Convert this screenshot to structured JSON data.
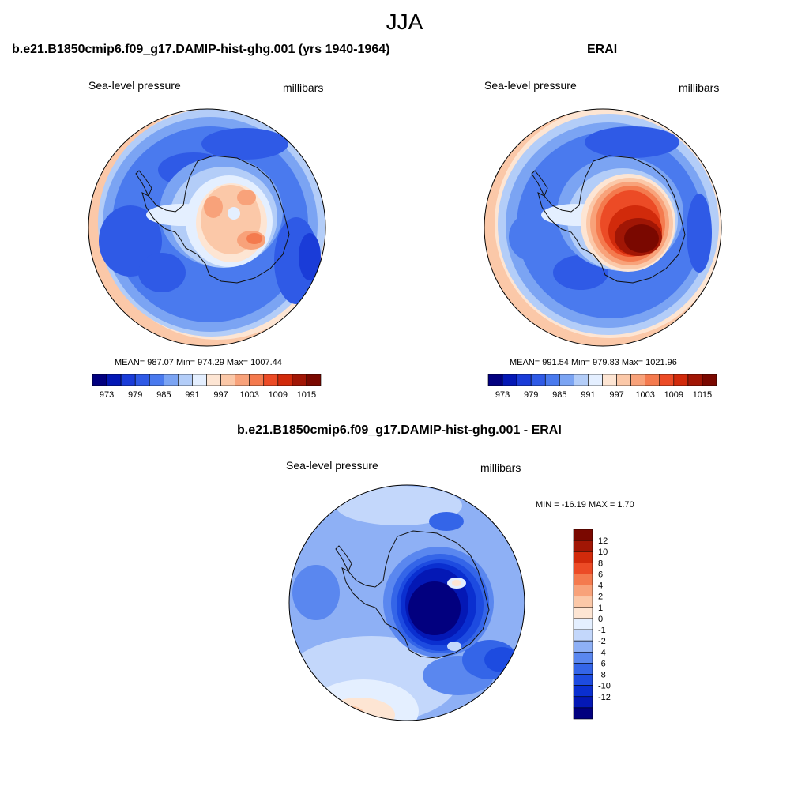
{
  "figure": {
    "title": "JJA"
  },
  "colors": {
    "abs_scale": [
      "#02007f",
      "#0418b5",
      "#1a3cd8",
      "#2f5ae6",
      "#4a7aee",
      "#7ba4f3",
      "#b3cdf8",
      "#e4efff",
      "#fde5d3",
      "#fbc8a8",
      "#f8a27a",
      "#f47a4e",
      "#ec4b26",
      "#d12a0b",
      "#a11605",
      "#7a0800"
    ],
    "diff_scale": [
      "#02007f",
      "#0418b5",
      "#0a2fd0",
      "#1d4be0",
      "#3465e8",
      "#5a87ef",
      "#8eb0f5",
      "#c3d7fb",
      "#e4efff",
      "#fde5d3",
      "#fbc8a8",
      "#f8a27a",
      "#f47a4e",
      "#ec4b26",
      "#d12a0b",
      "#a11605",
      "#7a0800"
    ],
    "coast": "#111111"
  },
  "panels": [
    {
      "id": "model",
      "title": "b.e21.B1850cmip6.f09_g17.DAMIP-hist-ghg.001 (yrs 1940-1964)",
      "variable": "Sea-level pressure",
      "units": "millibars",
      "stats": "MEAN= 987.07  Min= 974.29  Max= 1007.44",
      "colorbar_ticks": [
        "973",
        "979",
        "985",
        "991",
        "997",
        "1003",
        "1009",
        "1015"
      ]
    },
    {
      "id": "obs",
      "title": "ERAI",
      "variable": "Sea-level pressure",
      "units": "millibars",
      "stats": "MEAN= 991.54  Min= 979.83  Max= 1021.96",
      "colorbar_ticks": [
        "973",
        "979",
        "985",
        "991",
        "997",
        "1003",
        "1009",
        "1015"
      ]
    },
    {
      "id": "diff",
      "title": "b.e21.B1850cmip6.f09_g17.DAMIP-hist-ghg.001 - ERAI",
      "variable": "Sea-level pressure",
      "units": "millibars",
      "stats": "MIN = -16.19 MAX =   1.70",
      "colorbar_ticks": [
        "12",
        "10",
        "8",
        "6",
        "4",
        "2",
        "1",
        "0",
        "-1",
        "-2",
        "-4",
        "-6",
        "-8",
        "-10",
        "-12"
      ]
    }
  ]
}
